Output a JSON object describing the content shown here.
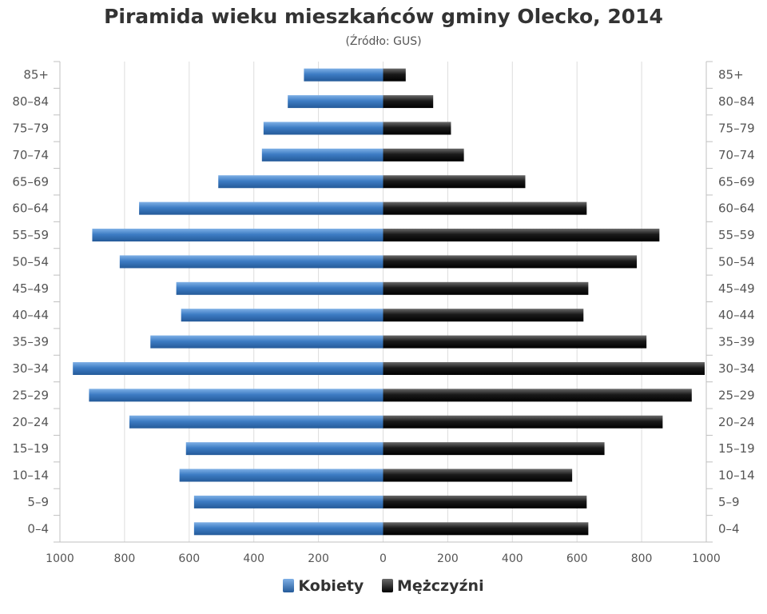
{
  "chart_data": {
    "type": "bar",
    "title": "Piramida wieku mieszkańców gminy Olecko, 2014",
    "subtitle": "(Źródło: GUS)",
    "categories": [
      "85+",
      "80–84",
      "75–79",
      "70–74",
      "65–69",
      "60–64",
      "55–59",
      "50–54",
      "45–49",
      "40–44",
      "35–39",
      "30–34",
      "25–29",
      "20–24",
      "15–19",
      "10–14",
      "5–9",
      "0–4"
    ],
    "series": [
      {
        "name": "Kobiety",
        "color": "#3a78c0",
        "values": [
          245,
          295,
          370,
          375,
          510,
          755,
          900,
          815,
          640,
          625,
          720,
          960,
          910,
          785,
          610,
          630,
          585,
          585
        ]
      },
      {
        "name": "Mężczyźni",
        "color": "#1a1a1a",
        "values": [
          70,
          155,
          210,
          250,
          440,
          630,
          855,
          785,
          635,
          620,
          815,
          995,
          955,
          865,
          685,
          585,
          630,
          635
        ]
      }
    ],
    "xlim": [
      -1000,
      1000
    ],
    "xticks": [
      -1000,
      -800,
      -600,
      -400,
      -200,
      0,
      200,
      400,
      600,
      800,
      1000
    ],
    "xtick_labels": [
      "1000",
      "800",
      "600",
      "400",
      "200",
      "0",
      "200",
      "400",
      "600",
      "800",
      "1000"
    ],
    "grid": true,
    "legend_position": "bottom"
  }
}
